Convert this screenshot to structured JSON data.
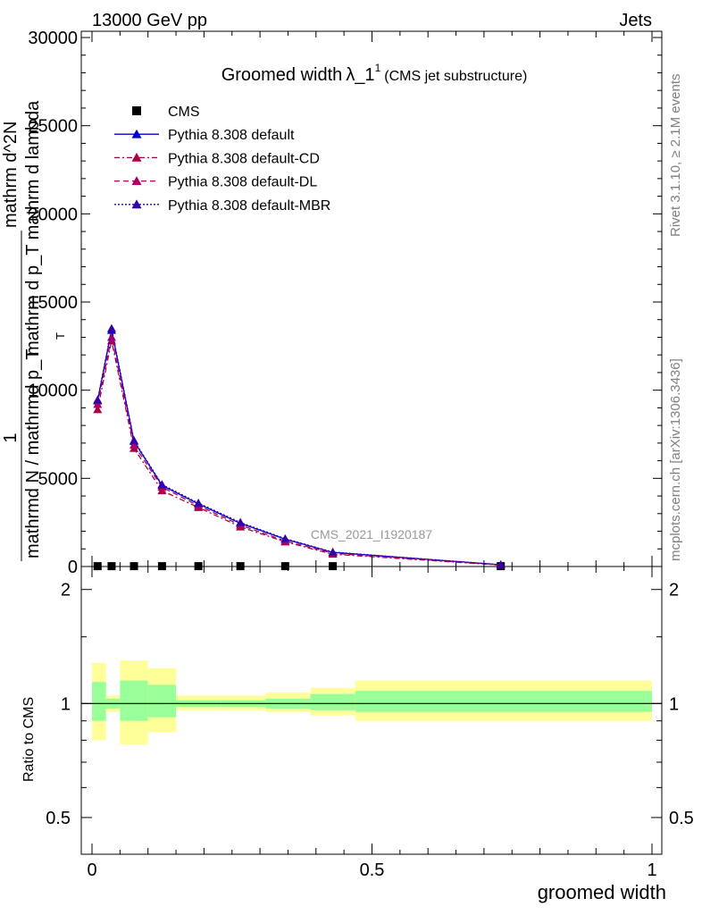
{
  "header": {
    "left": "13000 GeV pp",
    "right": "Jets"
  },
  "side": {
    "rivet": "Rivet 3.1.10, ≥ 2.1M events",
    "mcplots": "mcplots.cern.ch [arXiv:1306.3436]"
  },
  "watermark": "CMS_2021_I1920187",
  "colors": {
    "cms": "#000000",
    "default": "#0000cc",
    "cd": "#aa0044",
    "dl": "#aa0066",
    "mbr": "#3300aa",
    "band_outer": "#ffff99",
    "band_inner": "#99ff99"
  },
  "chart_data": [
    {
      "type": "line",
      "title": "Groomed width",
      "title_symbol": "λ_1",
      "title_sup": "1",
      "subtitle": "(CMS jet substructure)",
      "ylabel_parts": [
        "1",
        "mathrmd N / mathrmd p_T",
        "mathrm d^2N",
        "mathrm d p_T mathrm d lambda"
      ],
      "ylabel_sub": "T",
      "ylim": [
        0,
        30000
      ],
      "yticks": [
        {
          "v": 0,
          "label": "0"
        },
        {
          "v": 5000,
          "label": "5000"
        },
        {
          "v": 10000,
          "label": "10000"
        },
        {
          "v": 15000,
          "label": "15000"
        },
        {
          "v": 20000,
          "label": "20000"
        },
        {
          "v": 25000,
          "label": "25000"
        },
        {
          "v": 30000,
          "label": "30000"
        }
      ],
      "xlim": [
        0,
        1
      ],
      "legend": [
        {
          "name": "CMS",
          "key": "cms"
        },
        {
          "name": "Pythia 8.308 default",
          "key": "default"
        },
        {
          "name": "Pythia 8.308 default-CD",
          "key": "cd"
        },
        {
          "name": "Pythia 8.308 default-DL",
          "key": "dl"
        },
        {
          "name": "Pythia 8.308 default-MBR",
          "key": "mbr"
        }
      ],
      "x": [
        0.01,
        0.035,
        0.075,
        0.125,
        0.19,
        0.265,
        0.345,
        0.43,
        0.73
      ],
      "series": [
        {
          "name": "CMS",
          "key": "cms",
          "values": [
            20,
            20,
            20,
            20,
            20,
            20,
            20,
            20,
            20
          ]
        },
        {
          "name": "Pythia 8.308 default",
          "key": "default",
          "values": [
            9400,
            13400,
            7100,
            4600,
            3550,
            2450,
            1550,
            800,
            100
          ]
        },
        {
          "name": "Pythia 8.308 default-CD",
          "key": "cd",
          "values": [
            8900,
            12800,
            6700,
            4300,
            3350,
            2250,
            1400,
            700,
            80
          ]
        },
        {
          "name": "Pythia 8.308 default-DL",
          "key": "dl",
          "values": [
            9200,
            13000,
            6900,
            4500,
            3450,
            2350,
            1450,
            750,
            90
          ]
        },
        {
          "name": "Pythia 8.308 default-MBR",
          "key": "mbr",
          "values": [
            9450,
            13500,
            7150,
            4650,
            3600,
            2500,
            1580,
            820,
            100
          ]
        }
      ]
    },
    {
      "type": "area",
      "ylabel": "Ratio to CMS",
      "xlabel": "groomed width",
      "ylim": [
        0.4,
        2.3
      ],
      "log_y": true,
      "yticks": [
        {
          "v": 0.5,
          "label": "0.5"
        },
        {
          "v": 1,
          "label": "1"
        },
        {
          "v": 2,
          "label": "2"
        }
      ],
      "xticks": [
        {
          "v": 0,
          "label": "0"
        },
        {
          "v": 0.5,
          "label": "0.5"
        },
        {
          "v": 1,
          "label": "1"
        }
      ],
      "bins": [
        {
          "x0": 0.0,
          "x1": 0.025,
          "outer": [
            0.8,
            1.28
          ],
          "inner": [
            0.9,
            1.14
          ]
        },
        {
          "x0": 0.025,
          "x1": 0.05,
          "outer": [
            0.95,
            1.05
          ],
          "inner": [
            0.97,
            1.03
          ]
        },
        {
          "x0": 0.05,
          "x1": 0.1,
          "outer": [
            0.78,
            1.3
          ],
          "inner": [
            0.9,
            1.15
          ]
        },
        {
          "x0": 0.1,
          "x1": 0.15,
          "outer": [
            0.84,
            1.24
          ],
          "inner": [
            0.92,
            1.12
          ]
        },
        {
          "x0": 0.15,
          "x1": 0.23,
          "outer": [
            0.96,
            1.05
          ],
          "inner": [
            0.98,
            1.02
          ]
        },
        {
          "x0": 0.23,
          "x1": 0.31,
          "outer": [
            0.96,
            1.05
          ],
          "inner": [
            0.98,
            1.02
          ]
        },
        {
          "x0": 0.31,
          "x1": 0.39,
          "outer": [
            0.95,
            1.07
          ],
          "inner": [
            0.97,
            1.03
          ]
        },
        {
          "x0": 0.39,
          "x1": 0.47,
          "outer": [
            0.93,
            1.1
          ],
          "inner": [
            0.96,
            1.06
          ]
        },
        {
          "x0": 0.47,
          "x1": 1.0,
          "outer": [
            0.9,
            1.15
          ],
          "inner": [
            0.95,
            1.08
          ]
        }
      ]
    }
  ]
}
